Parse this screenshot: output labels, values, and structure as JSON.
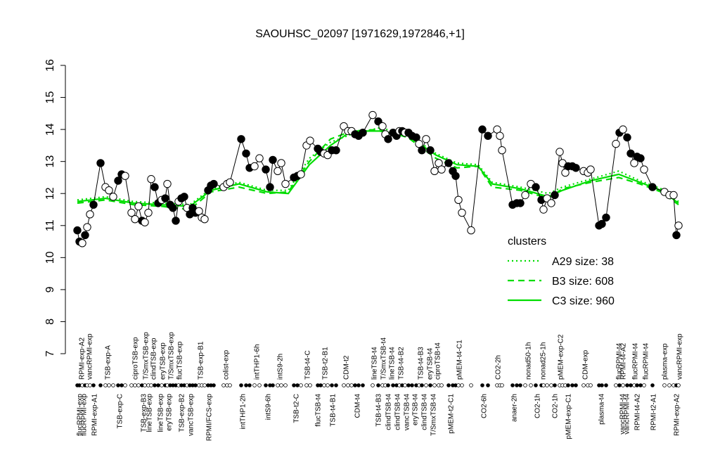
{
  "chart_data": {
    "type": "line",
    "title": "SAOUHSC_02097 [1971629,1972846,+1]",
    "ylim": [
      7,
      16
    ],
    "yticks": [
      7,
      8,
      9,
      10,
      11,
      12,
      13,
      14,
      15,
      16
    ],
    "xlim": [
      0,
      880
    ],
    "x": [
      10,
      13,
      17,
      21,
      24,
      28,
      33,
      43,
      50,
      55,
      61,
      68,
      73,
      78,
      87,
      92,
      97,
      102,
      106,
      111,
      115,
      120,
      125,
      130,
      135,
      138,
      142,
      146,
      150,
      154,
      158,
      162,
      166,
      170,
      174,
      178,
      183,
      187,
      191,
      196,
      200,
      204,
      218,
      223,
      227,
      243,
      250,
      255,
      262,
      269,
      278,
      284,
      288,
      295,
      300,
      306,
      318,
      323,
      328,
      336,
      341,
      352,
      356,
      361,
      366,
      372,
      378,
      389,
      395,
      400,
      405,
      410,
      416,
      430,
      438,
      444,
      448,
      452,
      459,
      464,
      468,
      472,
      476,
      481,
      486,
      492,
      496,
      500,
      506,
      512,
      518,
      524,
      528,
      538,
      544,
      548,
      552,
      557,
      570,
      586,
      594,
      607,
      611,
      614,
      629,
      635,
      640,
      647,
      655,
      662,
      670,
      673,
      678,
      684,
      689,
      696,
      700,
      704,
      708,
      714,
      719,
      730,
      736,
      740,
      752,
      756,
      762,
      776,
      781,
      786,
      792,
      797,
      802,
      806,
      811,
      816,
      828,
      845,
      852,
      858,
      862,
      865
    ],
    "values": [
      10.85,
      10.5,
      10.45,
      10.7,
      10.95,
      11.35,
      11.65,
      12.95,
      12.2,
      12.1,
      11.9,
      12.4,
      12.6,
      12.55,
      11.4,
      11.2,
      11.6,
      11.15,
      11.1,
      11.4,
      12.45,
      12.2,
      11.7,
      11.8,
      11.85,
      12.3,
      11.65,
      11.55,
      11.15,
      11.75,
      11.85,
      11.9,
      11.55,
      11.35,
      11.55,
      11.4,
      11.45,
      11.25,
      11.2,
      12.1,
      12.25,
      12.3,
      12.2,
      12.3,
      12.35,
      13.7,
      13.25,
      12.8,
      12.85,
      13.1,
      12.75,
      12.2,
      13.05,
      12.7,
      12.95,
      12.3,
      12.5,
      12.55,
      12.6,
      13.5,
      13.65,
      13.4,
      13.3,
      13.25,
      13.2,
      13.35,
      13.35,
      14.1,
      13.95,
      13.95,
      13.85,
      13.8,
      13.9,
      14.45,
      14.25,
      14.1,
      13.85,
      13.7,
      13.9,
      13.8,
      13.95,
      13.95,
      13.9,
      13.9,
      13.8,
      13.75,
      13.55,
      13.35,
      13.7,
      13.35,
      12.7,
      12.95,
      12.75,
      12.95,
      12.7,
      12.55,
      11.8,
      11.4,
      10.85,
      14.0,
      13.8,
      14.0,
      13.8,
      13.35,
      11.65,
      11.7,
      11.7,
      11.95,
      12.3,
      12.2,
      11.8,
      11.5,
      11.85,
      11.7,
      11.95,
      13.3,
      12.95,
      12.65,
      12.85,
      12.85,
      12.8,
      12.7,
      12.65,
      12.75,
      11.0,
      11.05,
      11.25,
      13.55,
      13.9,
      14.0,
      13.75,
      13.25,
      12.95,
      13.15,
      13.1,
      12.75,
      12.2,
      12.05,
      11.95,
      11.95,
      10.7,
      11.0
    ],
    "filled": [
      true,
      true,
      false,
      true,
      false,
      false,
      true,
      true,
      false,
      false,
      false,
      true,
      true,
      false,
      false,
      false,
      false,
      true,
      false,
      false,
      false,
      true,
      true,
      false,
      true,
      false,
      true,
      true,
      true,
      false,
      true,
      true,
      false,
      true,
      true,
      true,
      false,
      false,
      false,
      true,
      true,
      true,
      false,
      false,
      false,
      true,
      true,
      true,
      false,
      false,
      true,
      true,
      true,
      false,
      false,
      false,
      true,
      true,
      false,
      false,
      false,
      true,
      true,
      false,
      false,
      true,
      true,
      false,
      false,
      false,
      true,
      true,
      true,
      false,
      true,
      false,
      false,
      true,
      true,
      true,
      false,
      true,
      false,
      true,
      true,
      true,
      false,
      true,
      false,
      true,
      false,
      false,
      false,
      true,
      true,
      true,
      false,
      false,
      false,
      true,
      true,
      false,
      false,
      false,
      true,
      true,
      true,
      false,
      false,
      true,
      true,
      false,
      false,
      false,
      true,
      false,
      false,
      false,
      true,
      true,
      true,
      false,
      false,
      false,
      true,
      true,
      true,
      false,
      true,
      false,
      true,
      true,
      false,
      true,
      true,
      false,
      true,
      false,
      false,
      false,
      true,
      false
    ],
    "labels_top": [
      {
        "x": 16,
        "text": "RPMI-exp-A2"
      },
      {
        "x": 27,
        "text": "vancRPMI-exp"
      },
      {
        "x": 53,
        "text": "TSB-exp-A"
      },
      {
        "x": 92,
        "text": "ciproTSB-exp"
      },
      {
        "x": 107,
        "text": "T/SmxTSB-exp"
      },
      {
        "x": 118,
        "text": "clindTSB-exp"
      },
      {
        "x": 131,
        "text": "eryTSB-exp"
      },
      {
        "x": 143,
        "text": "T/SmxTSB-exp"
      },
      {
        "x": 155,
        "text": "flucTSB-exp"
      },
      {
        "x": 185,
        "text": "TSB-exp-B1"
      },
      {
        "x": 221,
        "text": "colist-exp"
      },
      {
        "x": 265,
        "text": "intTHP1-6h"
      },
      {
        "x": 298,
        "text": "intS9-2h"
      },
      {
        "x": 337,
        "text": "TSB-t4-C"
      },
      {
        "x": 362,
        "text": "TSB-t2-B1"
      },
      {
        "x": 392,
        "text": "CDM-t2"
      },
      {
        "x": 432,
        "text": "lineTSB-t4"
      },
      {
        "x": 445,
        "text": "T/SmxTSB-t4"
      },
      {
        "x": 457,
        "text": "lineTSB-t4"
      },
      {
        "x": 470,
        "text": "TSB-t4-B2"
      },
      {
        "x": 498,
        "text": "TSB-t4-B3"
      },
      {
        "x": 511,
        "text": "eryTSB-t4"
      },
      {
        "x": 522,
        "text": "ciproTSB-t4"
      },
      {
        "x": 553,
        "text": "pMEM-t4-C1"
      },
      {
        "x": 608,
        "text": "CO2-2h"
      },
      {
        "x": 651,
        "text": "nonad50-1h"
      },
      {
        "x": 672,
        "text": "nonad25-1h"
      },
      {
        "x": 697,
        "text": "pMEM-exp-C2"
      },
      {
        "x": 732,
        "text": "CDM-exp"
      },
      {
        "x": 780,
        "text": "flucRPMI-t4"
      },
      {
        "x": 786,
        "text": "RPMI-t4-A2"
      },
      {
        "x": 803,
        "text": "flucRPMI-t4"
      },
      {
        "x": 818,
        "text": "flucRPMI-t4"
      },
      {
        "x": 845,
        "text": "plasma-exp"
      },
      {
        "x": 866,
        "text": "vancRPMI-exp"
      }
    ],
    "labels_bottom": [
      {
        "x": 13,
        "text": "flucRPMI-exp"
      },
      {
        "x": 19,
        "text": "flucRPMI-exp"
      },
      {
        "x": 34,
        "text": "RPMI-exp-A1"
      },
      {
        "x": 70,
        "text": "TSB-exp-C"
      },
      {
        "x": 104,
        "text": "TSB-exp-B3"
      },
      {
        "x": 112,
        "text": "lineTSB-exp"
      },
      {
        "x": 128,
        "text": "lineTSB-exp"
      },
      {
        "x": 140,
        "text": "eryTSB-exp"
      },
      {
        "x": 158,
        "text": "TSB-exp-B2"
      },
      {
        "x": 171,
        "text": "vancTSB-exp"
      },
      {
        "x": 197,
        "text": "RPMI/FCS-exp"
      },
      {
        "x": 245,
        "text": "intTHP1-2h"
      },
      {
        "x": 281,
        "text": "intS9-6h"
      },
      {
        "x": 321,
        "text": "TSB-t2-C"
      },
      {
        "x": 352,
        "text": "flucTSB-t4"
      },
      {
        "x": 373,
        "text": "TSB-t4-B1"
      },
      {
        "x": 408,
        "text": "CDM-t4"
      },
      {
        "x": 438,
        "text": "TSB-t4-B3"
      },
      {
        "x": 452,
        "text": "clindTSB-t4"
      },
      {
        "x": 465,
        "text": "clindTSB-t4"
      },
      {
        "x": 478,
        "text": "vancTSB-t4"
      },
      {
        "x": 490,
        "text": "eryTSB-t4"
      },
      {
        "x": 503,
        "text": "clindTSB-t4"
      },
      {
        "x": 516,
        "text": "T/SmxTSB-t4"
      },
      {
        "x": 541,
        "text": "pMEM-t2-C1"
      },
      {
        "x": 588,
        "text": "CO2-6h"
      },
      {
        "x": 631,
        "text": "anaer-2h"
      },
      {
        "x": 664,
        "text": "CO2-1h"
      },
      {
        "x": 689,
        "text": "CO2-1h"
      },
      {
        "x": 708,
        "text": "pMEM-exp-C1"
      },
      {
        "x": 755,
        "text": "plasma-t4"
      },
      {
        "x": 785,
        "text": "vancRPMI-t4"
      },
      {
        "x": 791,
        "text": "vancRPMI-t4"
      },
      {
        "x": 806,
        "text": "RPMI-t4-A2"
      },
      {
        "x": 829,
        "text": "RPMI-t2-A1"
      },
      {
        "x": 862,
        "text": "RPMI-exp-A2"
      }
    ],
    "cluster_x": [
      10,
      50,
      90,
      130,
      170,
      200,
      240,
      280,
      310,
      340,
      370,
      400,
      440,
      480,
      520,
      550,
      580,
      600,
      640,
      680,
      700,
      740,
      780,
      810,
      840,
      865
    ],
    "clusters": [
      {
        "name": "A29 size: 38",
        "style": "dotted",
        "color": "#00dd00",
        "values": [
          11.8,
          11.9,
          11.75,
          11.7,
          11.65,
          12.15,
          12.35,
          12.1,
          12.1,
          13.1,
          13.6,
          13.85,
          14.05,
          13.85,
          13.25,
          12.95,
          12.9,
          12.35,
          12.2,
          12.0,
          12.2,
          12.45,
          12.7,
          12.4,
          12.15,
          11.75
        ]
      },
      {
        "name": "B3 size: 608",
        "style": "dashed",
        "color": "#00dd00",
        "values": [
          11.7,
          11.8,
          11.65,
          11.6,
          11.5,
          12.05,
          12.2,
          12.0,
          12.05,
          13.0,
          13.7,
          13.95,
          14.0,
          13.75,
          13.1,
          12.8,
          12.85,
          12.2,
          12.1,
          11.85,
          12.15,
          12.35,
          12.5,
          12.3,
          12.05,
          11.65
        ]
      },
      {
        "name": "C3 size: 960",
        "style": "solid",
        "color": "#00dd00",
        "values": [
          11.75,
          11.85,
          11.7,
          11.65,
          11.6,
          12.1,
          12.3,
          12.05,
          12.0,
          12.9,
          13.5,
          13.95,
          13.95,
          13.8,
          13.2,
          12.9,
          12.85,
          12.3,
          12.15,
          11.9,
          12.1,
          12.4,
          12.6,
          12.35,
          12.1,
          11.7
        ]
      }
    ],
    "legend": {
      "title": "clusters",
      "position": "right"
    }
  }
}
